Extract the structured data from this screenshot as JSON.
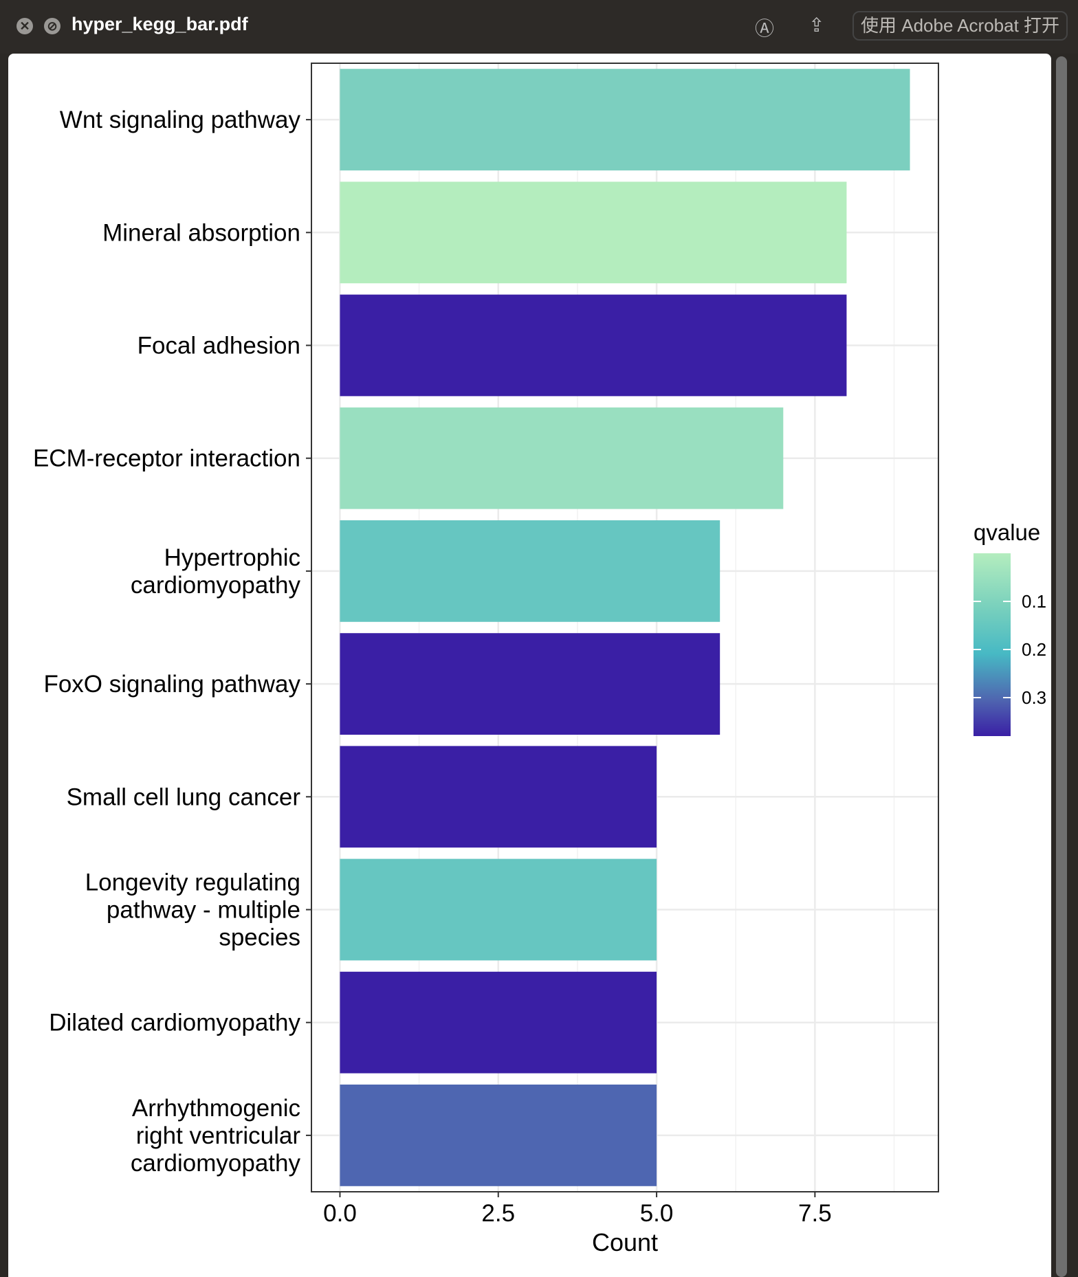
{
  "window": {
    "title": "hyper_kegg_bar.pdf",
    "open_button": "使用 Adobe Acrobat 打开"
  },
  "chart_data": {
    "type": "bar",
    "orientation": "horizontal",
    "categories": [
      "Wnt signaling pathway",
      "Mineral absorption",
      "Focal adhesion",
      "ECM-receptor interaction",
      "Hypertrophic cardiomyopathy",
      "FoxO signaling pathway",
      "Small cell lung cancer",
      "Longevity regulating pathway - multiple species",
      "Dilated cardiomyopathy",
      "Arrhythmogenic right ventricular cardiomyopathy"
    ],
    "label_lines": [
      [
        "Wnt signaling pathway"
      ],
      [
        "Mineral absorption"
      ],
      [
        "Focal adhesion"
      ],
      [
        "ECM-receptor interaction"
      ],
      [
        "Hypertrophic",
        "cardiomyopathy"
      ],
      [
        "FoxO signaling pathway"
      ],
      [
        "Small cell lung cancer"
      ],
      [
        "Longevity regulating",
        "pathway - multiple",
        "species"
      ],
      [
        "Dilated cardiomyopathy"
      ],
      [
        "Arrhythmogenic",
        "right ventricular",
        "cardiomyopathy"
      ]
    ],
    "values": [
      9,
      8,
      8,
      7,
      6,
      6,
      5,
      5,
      5,
      5
    ],
    "qvalue": [
      0.07,
      0.0,
      0.38,
      0.04,
      0.12,
      0.38,
      0.38,
      0.12,
      0.38,
      0.3
    ],
    "colors": [
      "#7ccfbf",
      "#b4edbe",
      "#3a1fa5",
      "#99dfc0",
      "#66c6c1",
      "#3a1fa5",
      "#3a1fa5",
      "#66c6c1",
      "#3a1fa5",
      "#4e66b1"
    ],
    "xlabel": "Count",
    "ylabel": "",
    "xlim": [
      -0.45,
      9.45
    ],
    "xticks": [
      "0.0",
      "2.5",
      "5.0",
      "7.5"
    ],
    "xtick_values": [
      0,
      2.5,
      5,
      7.5
    ],
    "legend": {
      "title": "qvalue",
      "ticks": [
        "0.1",
        "0.2",
        "0.3"
      ],
      "tick_values": [
        0.1,
        0.2,
        0.3
      ],
      "range": [
        0.0,
        0.38
      ],
      "low_color": "#b4edbe",
      "mid_color": "#47b9c4",
      "high_color": "#3a1fa5",
      "placement": "right"
    }
  }
}
